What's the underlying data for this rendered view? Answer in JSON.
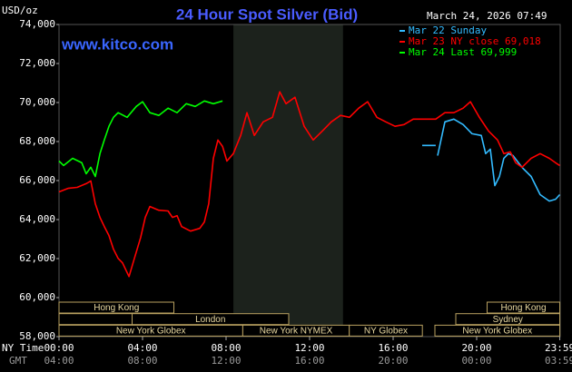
{
  "chart_data": {
    "type": "line",
    "title": "24 Hour Spot Silver (Bid)",
    "subtitle": "www.kitco.com",
    "timestamp": "March 24, 2026 07:49",
    "y_label": "USD/oz",
    "x_label": "NY Time",
    "x2_label": "GMT",
    "xlim": [
      0,
      24
    ],
    "ylim": [
      58000,
      74000
    ],
    "xticks": [
      {
        "value": 0,
        "label": "00:00"
      },
      {
        "value": 4,
        "label": "04:00"
      },
      {
        "value": 8,
        "label": "08:00"
      },
      {
        "value": 12,
        "label": "12:00"
      },
      {
        "value": 16,
        "label": "16:00"
      },
      {
        "value": 20,
        "label": "20:00"
      },
      {
        "value": 23.98,
        "label": "23:59"
      }
    ],
    "x2ticks": [
      {
        "value": 0,
        "label": "04:00"
      },
      {
        "value": 4,
        "label": "08:00"
      },
      {
        "value": 8,
        "label": "12:00"
      },
      {
        "value": 12,
        "label": "16:00"
      },
      {
        "value": 16,
        "label": "20:00"
      },
      {
        "value": 20,
        "label": "00:00"
      },
      {
        "value": 23.98,
        "label": "03:59"
      }
    ],
    "yticks": [
      {
        "value": 58000,
        "label": "58,000"
      },
      {
        "value": 60000,
        "label": "60,000"
      },
      {
        "value": 62000,
        "label": "62,000"
      },
      {
        "value": 64000,
        "label": "64,000"
      },
      {
        "value": 66000,
        "label": "66,000"
      },
      {
        "value": 68000,
        "label": "68,000"
      },
      {
        "value": 70000,
        "label": "70,000"
      },
      {
        "value": 72000,
        "label": "72,000"
      },
      {
        "value": 74000,
        "label": "74,000"
      }
    ],
    "grid": false,
    "shaded_x": [
      8.35,
      13.6
    ],
    "sessions": [
      [
        {
          "label": "Hong Kong",
          "start": 0,
          "end": 5.5
        },
        {
          "label": "Hong Kong",
          "start": 20.5,
          "end": 23.98
        }
      ],
      [
        {
          "start": 0,
          "end": 3.5
        },
        {
          "label": "London",
          "start": 3.5,
          "end": 11
        },
        {
          "label": "Sydney",
          "start": 19,
          "end": 23.98
        }
      ],
      [
        {
          "label": "New York Globex",
          "start": 0,
          "end": 8.8
        },
        {
          "label": "New York NYMEX",
          "start": 8.8,
          "end": 13.9
        },
        {
          "label": "NY Globex",
          "start": 13.9,
          "end": 17.4
        },
        {
          "label": "New York Globex",
          "start": 18,
          "end": 23.98
        }
      ]
    ],
    "series": [
      {
        "name": "Mar 22 Sunday",
        "color": "#33bbff",
        "x": [
          17.39,
          18.04,
          18.06,
          18.13,
          18.48,
          18.91,
          19.35,
          19.78,
          20.22,
          20.43,
          20.65,
          20.87,
          21.09,
          21.3,
          21.52,
          21.74,
          22.17,
          22.61,
          23.04,
          23.48,
          23.78,
          23.98
        ],
        "values": [
          67800,
          67800,
          null,
          67280,
          69010,
          69150,
          68870,
          68400,
          68310,
          67380,
          67610,
          65740,
          66210,
          67140,
          67380,
          67280,
          66680,
          66210,
          65280,
          64950,
          65040,
          65280
        ]
      },
      {
        "name": "Mar 23 NY close 69,018",
        "color": "#ff0000",
        "x": [
          0,
          0.43,
          0.87,
          1.3,
          1.52,
          1.74,
          1.96,
          2.17,
          2.39,
          2.61,
          2.83,
          3.04,
          3.35,
          3.61,
          3.91,
          4.13,
          4.35,
          4.78,
          5.22,
          5.43,
          5.65,
          5.87,
          6.3,
          6.74,
          6.96,
          7.17,
          7.39,
          7.61,
          7.83,
          8.04,
          8.35,
          8.7,
          9,
          9.35,
          9.78,
          10.22,
          10.57,
          10.87,
          11.3,
          11.74,
          12.17,
          12.61,
          13.04,
          13.48,
          13.91,
          14.35,
          14.78,
          15.22,
          15.65,
          16.09,
          16.52,
          16.96,
          17.61,
          18.04,
          18.48,
          18.91,
          19.35,
          19.7,
          20.13,
          20.57,
          21,
          21.3,
          21.61,
          21.87,
          22.17,
          22.61,
          23.04,
          23.48,
          23.78,
          23.98
        ],
        "values": [
          65420,
          65600,
          65650,
          65840,
          65980,
          64810,
          64110,
          63640,
          63180,
          62480,
          62010,
          61780,
          61080,
          62010,
          63080,
          64110,
          64670,
          64480,
          64440,
          64110,
          64200,
          63640,
          63410,
          63550,
          63880,
          64810,
          67140,
          68080,
          67750,
          67000,
          67380,
          68310,
          69480,
          68310,
          69010,
          69240,
          70550,
          69940,
          70270,
          68780,
          68080,
          68540,
          69010,
          69340,
          69240,
          69710,
          70040,
          69240,
          69010,
          68780,
          68870,
          69150,
          69150,
          69150,
          69480,
          69480,
          69710,
          70040,
          69240,
          68540,
          68080,
          67380,
          67470,
          66910,
          66680,
          67140,
          67380,
          67140,
          66910,
          66770
        ]
      },
      {
        "name": "Mar 24 Last 69,999",
        "color": "#00ff00",
        "x": [
          0,
          0.22,
          0.65,
          1.09,
          1.3,
          1.52,
          1.74,
          1.96,
          2.17,
          2.39,
          2.61,
          2.83,
          3.26,
          3.7,
          4,
          4.35,
          4.78,
          5.22,
          5.65,
          6.09,
          6.52,
          6.96,
          7.39,
          7.83
        ],
        "values": [
          67000,
          66770,
          67140,
          66910,
          66350,
          66680,
          66210,
          67380,
          68080,
          68780,
          69240,
          69480,
          69240,
          69800,
          70040,
          69480,
          69340,
          69710,
          69480,
          69940,
          69800,
          70080,
          69940,
          70080
        ]
      }
    ]
  }
}
